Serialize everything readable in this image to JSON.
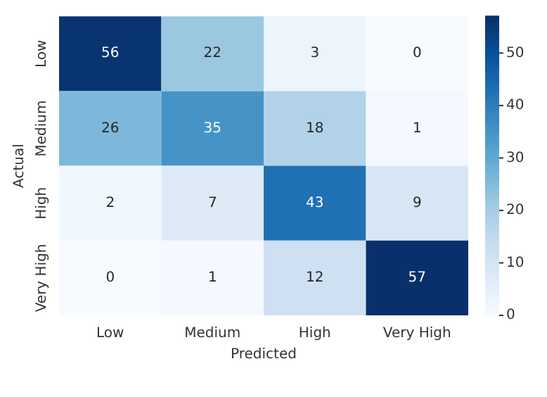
{
  "chart_data": {
    "type": "heatmap",
    "xlabel": "Predicted",
    "ylabel": "Actual",
    "categories": [
      "Low",
      "Medium",
      "High",
      "Very High"
    ],
    "y_categories": [
      "Low",
      "Medium",
      "High",
      "Very High"
    ],
    "cells": [
      [
        56,
        22,
        3,
        0
      ],
      [
        26,
        35,
        18,
        1
      ],
      [
        2,
        7,
        43,
        9
      ],
      [
        0,
        1,
        12,
        57
      ]
    ],
    "clim": [
      0,
      57
    ],
    "cticks": [
      0,
      10,
      20,
      30,
      40,
      50
    ],
    "data_labels": true
  }
}
